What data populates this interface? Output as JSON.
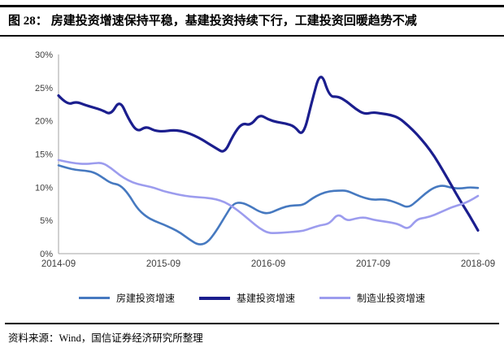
{
  "figure": {
    "label": "图 28：",
    "title": "房建投资增速保持平稳，基建投资持续下行，工建投资回暖趋势不减",
    "source_label": "资料来源：",
    "source": "Wind，国信证券经济研究所整理"
  },
  "chart_data": {
    "type": "line",
    "x_start": "2014-09",
    "x_end": "2018-09",
    "frequency": "monthly",
    "x_axis_ticks": [
      "2014-09",
      "2015-09",
      "2016-09",
      "2017-09",
      "2018-09"
    ],
    "y_axis_ticks": [
      "0%",
      "5%",
      "10%",
      "15%",
      "20%",
      "25%",
      "30%"
    ],
    "ylim": [
      0,
      30
    ],
    "y_unit": "%",
    "grid": false,
    "legend_position": "bottom",
    "axis_color": "#a3a3a3",
    "tick_label_color": "#3d3d3d",
    "series": [
      {
        "name": "房建投资增速",
        "color": "#4679c0",
        "width": 2.6,
        "values": [
          13.3,
          12.9,
          12.6,
          12.5,
          12.3,
          11.5,
          10.6,
          10.4,
          9.0,
          6.8,
          5.6,
          4.9,
          4.4,
          3.8,
          3.1,
          2.1,
          1.3,
          1.6,
          3.3,
          5.5,
          7.6,
          7.7,
          7.1,
          6.3,
          6.0,
          6.6,
          7.1,
          7.3,
          7.3,
          8.3,
          9.0,
          9.4,
          9.5,
          9.5,
          8.9,
          8.4,
          8.1,
          8.2,
          8.0,
          7.5,
          6.9,
          7.9,
          9.1,
          10.0,
          10.3,
          9.9,
          9.8,
          10.0,
          9.9
        ]
      },
      {
        "name": "基建投资增速",
        "color": "#1b1e8e",
        "width": 3.2,
        "values": [
          23.8,
          22.4,
          22.9,
          22.4,
          22.0,
          21.6,
          20.9,
          23.2,
          20.3,
          18.3,
          19.2,
          18.5,
          18.4,
          18.6,
          18.5,
          18.1,
          17.5,
          16.7,
          15.9,
          15.1,
          17.9,
          19.7,
          19.3,
          21.0,
          20.2,
          19.8,
          19.6,
          19.2,
          17.6,
          23.0,
          27.7,
          23.6,
          23.7,
          22.9,
          21.8,
          21.0,
          21.3,
          21.1,
          20.9,
          20.4,
          19.3,
          18.0,
          16.5,
          14.7,
          12.5,
          10.2,
          7.9,
          5.8,
          3.5
        ]
      },
      {
        "name": "制造业投资增速",
        "color": "#9c9cee",
        "width": 2.6,
        "values": [
          14.1,
          13.8,
          13.6,
          13.5,
          13.6,
          13.7,
          12.9,
          11.8,
          11.0,
          10.5,
          10.2,
          9.9,
          9.4,
          9.1,
          8.8,
          8.6,
          8.5,
          8.4,
          8.2,
          7.8,
          7.0,
          6.0,
          4.9,
          3.8,
          3.1,
          3.1,
          3.2,
          3.3,
          3.4,
          3.9,
          4.3,
          4.5,
          6.1,
          4.9,
          5.3,
          5.5,
          5.1,
          4.9,
          4.7,
          4.4,
          3.6,
          5.2,
          5.4,
          5.8,
          6.4,
          7.0,
          7.4,
          7.9,
          8.7
        ]
      }
    ]
  }
}
